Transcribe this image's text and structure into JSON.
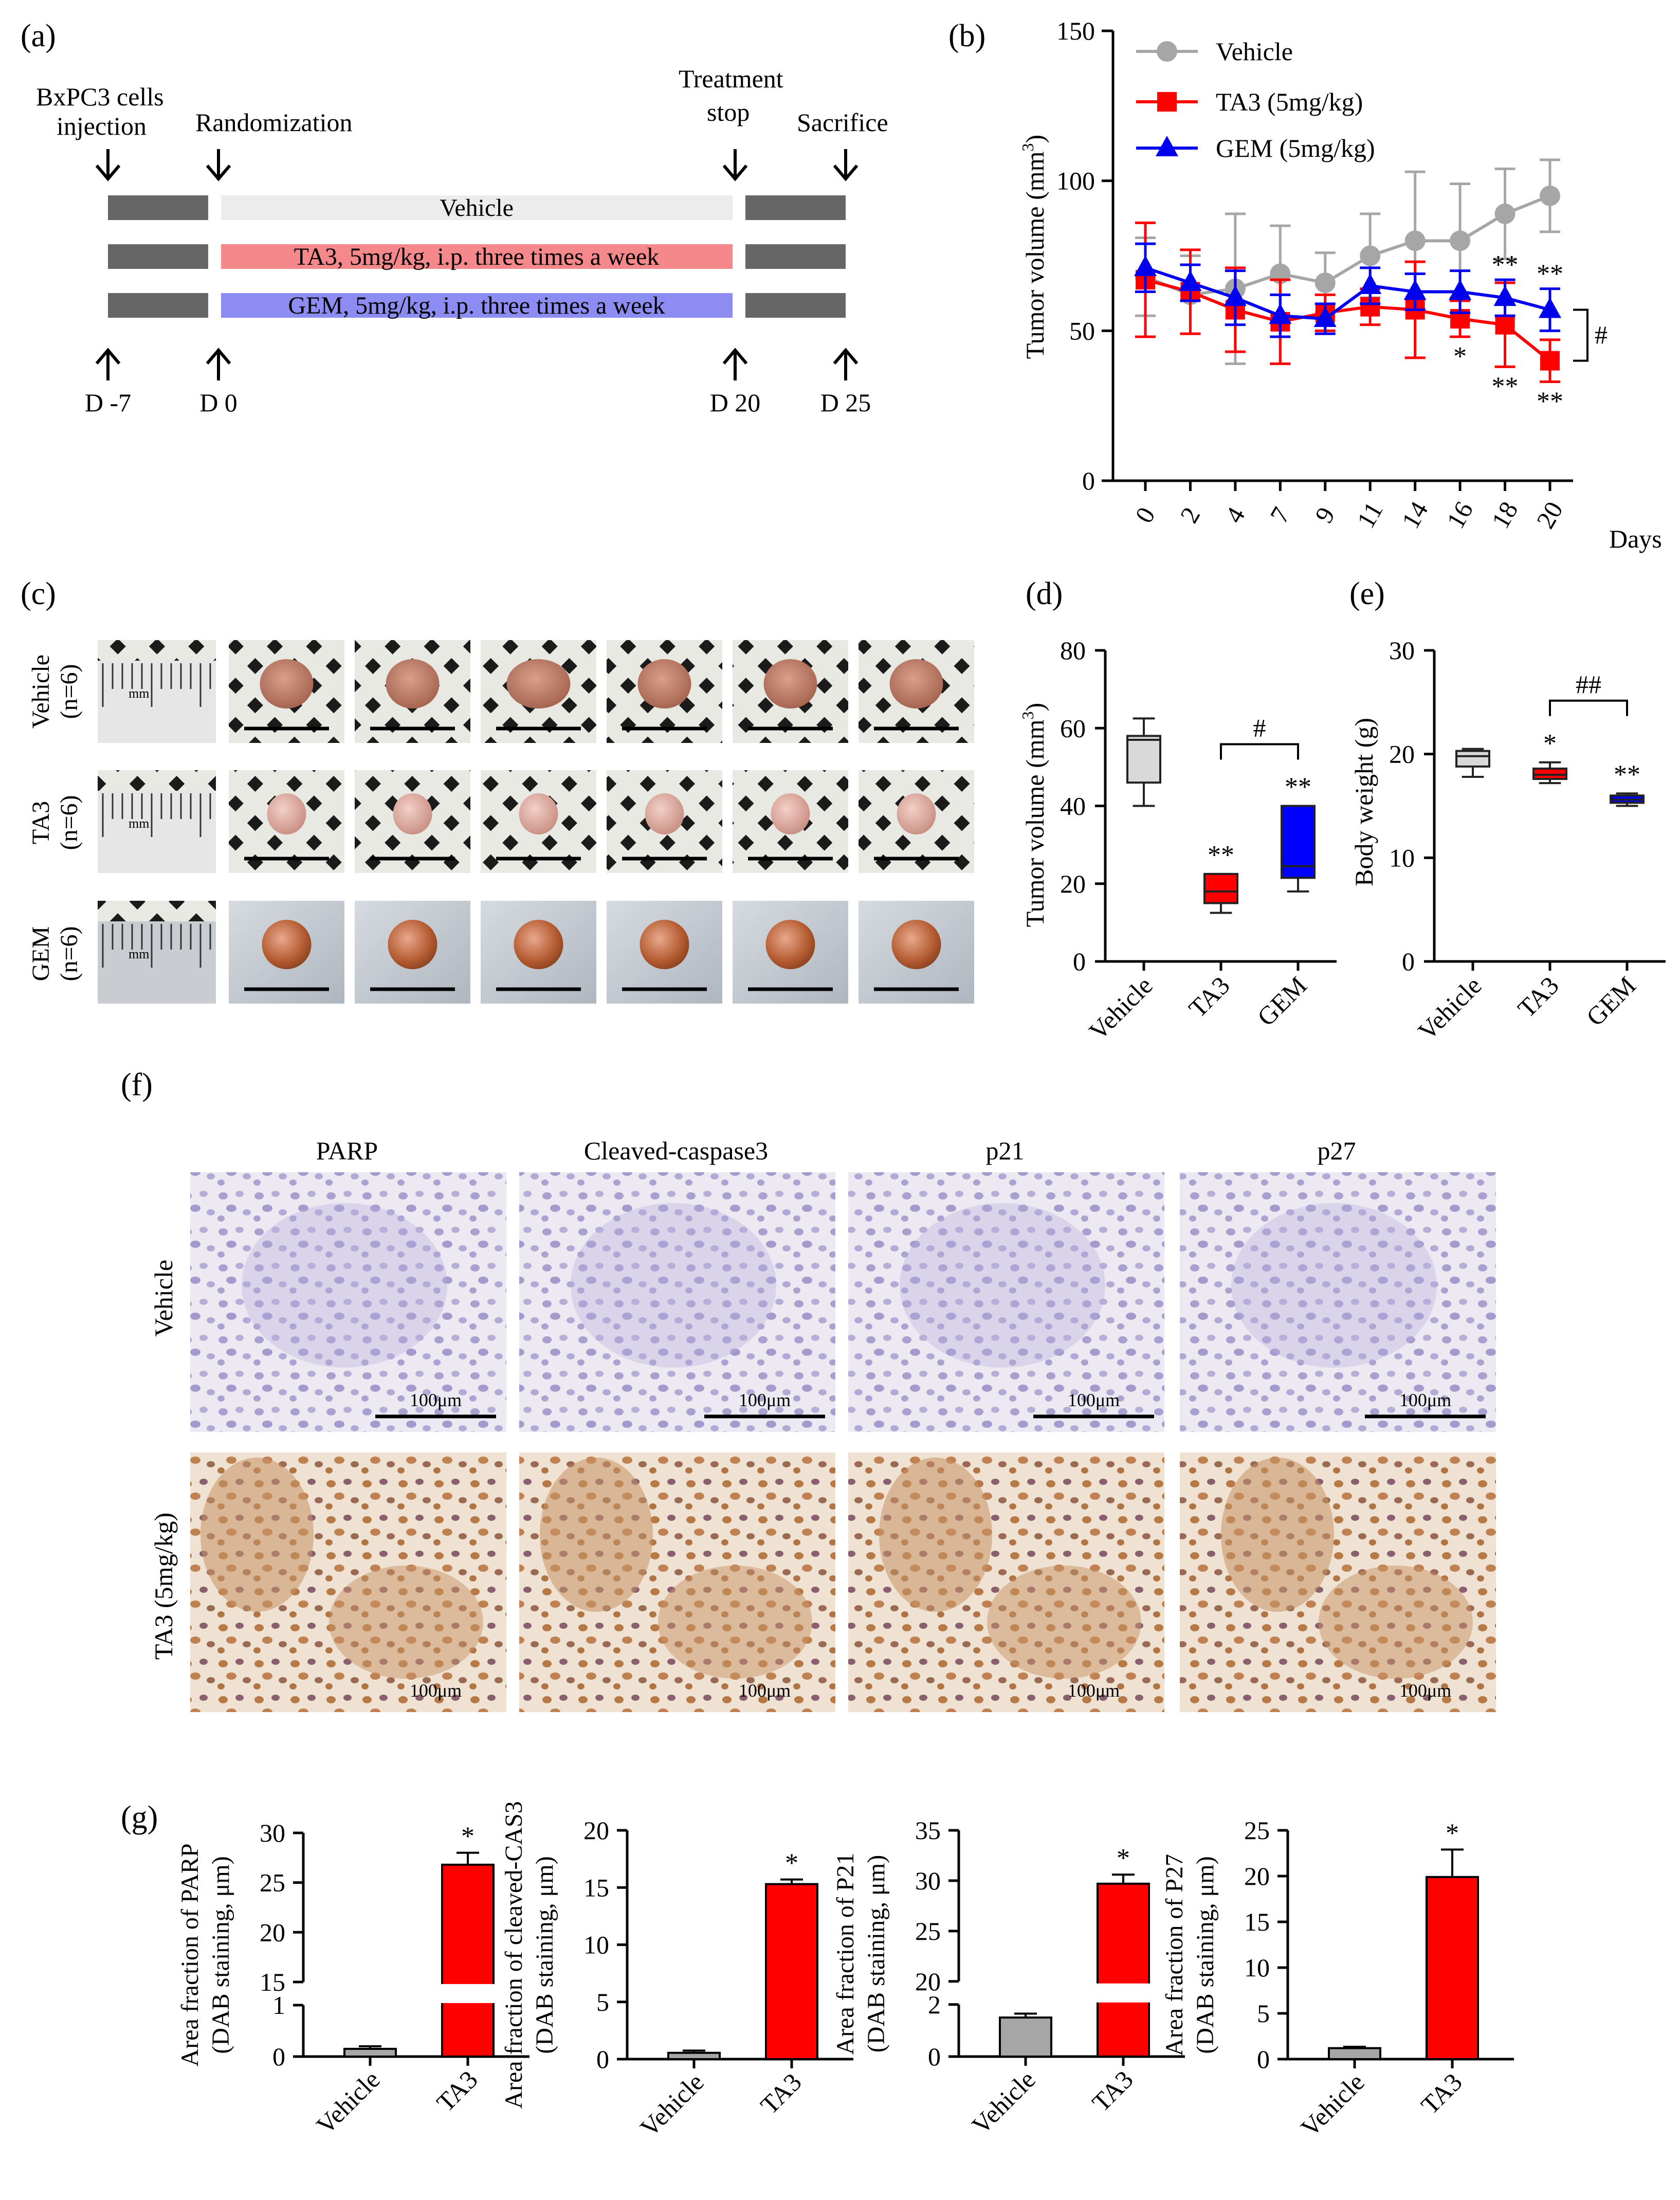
{
  "panels": {
    "a": "(a)",
    "b": "(b)",
    "c": "(c)",
    "d": "(d)",
    "e": "(e)",
    "f": "(f)",
    "g": "(g)"
  },
  "timeline": {
    "events_top": [
      "BxPC3 cells",
      "injection",
      "Randomization",
      "Treatment",
      "stop",
      "Sacrifice"
    ],
    "bars": [
      "Vehicle",
      "TA3, 5mg/kg, i.p. three times a week",
      "GEM, 5mg/kg, i.p. three times a week"
    ],
    "days": [
      "D -7",
      "D 0",
      "D 20",
      "D 25"
    ],
    "colors": {
      "vehicle": "#ececec",
      "ta3": "#f4888b",
      "gem": "#8c8cf2",
      "dark": "#666666"
    }
  },
  "photos": {
    "row_labels": [
      {
        "name": "Vehicle",
        "n": "(n=6)"
      },
      {
        "name": "TA3",
        "n": "(n=6)"
      },
      {
        "name": "GEM",
        "n": "(n=6)"
      }
    ],
    "ruler_unit": "mm"
  },
  "ihc": {
    "columns": [
      "PARP",
      "Cleaved-caspase3",
      "p21",
      "p27"
    ],
    "rows": [
      "Vehicle",
      "TA3 (5mg/kg)"
    ],
    "scale_label": "100μm"
  },
  "chart_data": [
    {
      "id": "b",
      "type": "line",
      "ylabel": "Tumor volume (mm",
      "ylabel_sup": "3",
      "ylabel_end": ")",
      "xlabel": "Days",
      "ylim": [
        0,
        150
      ],
      "yticks": [
        0,
        50,
        100,
        150
      ],
      "categories": [
        "0",
        "2",
        "4",
        "7",
        "9",
        "11",
        "14",
        "16",
        "18",
        "20"
      ],
      "series": [
        {
          "name": "Vehicle",
          "color": "#a6a6a6",
          "marker": "circle",
          "values": [
            68,
            62,
            64,
            69,
            66,
            75,
            80,
            80,
            89,
            95
          ],
          "errors": [
            13,
            13,
            25,
            16,
            10,
            14,
            23,
            19,
            15,
            12
          ]
        },
        {
          "name": "TA3 (5mg/kg)",
          "color": "#ff0000",
          "marker": "square",
          "values": [
            67,
            63,
            57,
            53,
            56,
            58,
            57,
            54,
            52,
            40
          ],
          "errors": [
            19,
            14,
            14,
            14,
            6,
            6,
            16,
            6,
            14,
            7
          ]
        },
        {
          "name": "GEM (5mg/kg)",
          "color": "#0000ee",
          "marker": "triangle",
          "values": [
            71,
            66,
            61,
            55,
            54,
            65,
            63,
            63,
            61,
            57
          ],
          "errors": [
            8,
            6,
            9,
            7,
            5,
            6,
            6,
            7,
            6,
            7
          ]
        }
      ],
      "annotations": {
        "above": [
          {
            "i": 8,
            "t": "**"
          },
          {
            "i": 9,
            "t": "**"
          }
        ],
        "below": [
          {
            "i": 7,
            "t": "*"
          },
          {
            "i": 8,
            "t": "**"
          },
          {
            "i": 9,
            "t": "**"
          }
        ],
        "bracket": "#"
      }
    },
    {
      "id": "d",
      "type": "box",
      "ylabel": "Tumor volume (mm",
      "ylabel_sup": "3",
      "ylabel_end": ")",
      "ylim": [
        0,
        80
      ],
      "yticks": [
        0,
        20,
        40,
        60,
        80
      ],
      "categories": [
        "Vehicle",
        "TA3",
        "GEM"
      ],
      "boxes": [
        {
          "min": 40,
          "q1": 46,
          "median": 57,
          "q3": 58,
          "max": 62.5,
          "color": "#d9d9d9",
          "mark": ""
        },
        {
          "min": 12.5,
          "q1": 15,
          "median": 18,
          "q3": 22.5,
          "max": 22.5,
          "color": "#ff0000",
          "mark": "**"
        },
        {
          "min": 18,
          "q1": 21.5,
          "median": 24.5,
          "q3": 40,
          "max": 40,
          "color": "#0000ff",
          "mark": "**"
        }
      ],
      "bracket": {
        "from": 1,
        "to": 2,
        "label": "#"
      }
    },
    {
      "id": "e",
      "type": "box",
      "ylabel": "Body weight (g)",
      "ylim": [
        0,
        30
      ],
      "yticks": [
        0,
        10,
        20,
        30
      ],
      "categories": [
        "Vehicle",
        "TA3",
        "GEM"
      ],
      "boxes": [
        {
          "min": 17.8,
          "q1": 18.8,
          "median": 19.8,
          "q3": 20.3,
          "max": 20.5,
          "color": "#d9d9d9",
          "mark": ""
        },
        {
          "min": 17.2,
          "q1": 17.6,
          "median": 18.0,
          "q3": 18.6,
          "max": 19.2,
          "color": "#ff0000",
          "mark": "*"
        },
        {
          "min": 15.0,
          "q1": 15.3,
          "median": 15.6,
          "q3": 16.0,
          "max": 16.2,
          "color": "#0000ff",
          "mark": "**"
        }
      ],
      "bracket": {
        "from": 1,
        "to": 2,
        "label": "##"
      }
    },
    {
      "id": "g1",
      "type": "bar",
      "ylabel1": "Area fraction of PARP",
      "ylabel2": "(DAB staining, μm)",
      "categories": [
        "Vehicle",
        "TA3"
      ],
      "values": [
        0.15,
        26.8
      ],
      "errors": [
        0.05,
        1.2
      ],
      "colors": [
        "#a6a6a6",
        "#ff0000"
      ],
      "broken_axis": {
        "lower": [
          0,
          1
        ],
        "upper": [
          15,
          30
        ]
      },
      "yticks_lower": [
        0,
        1
      ],
      "yticks_upper": [
        15,
        20,
        25,
        30
      ],
      "sig": "*"
    },
    {
      "id": "g2",
      "type": "bar",
      "ylabel1": "Area fraction of cleaved-CAS3",
      "ylabel2": "(DAB staining, μm)",
      "categories": [
        "Vehicle",
        "TA3"
      ],
      "values": [
        0.55,
        15.3
      ],
      "errors": [
        0.2,
        0.4
      ],
      "colors": [
        "#a6a6a6",
        "#ff0000"
      ],
      "ylim": [
        0,
        20
      ],
      "yticks": [
        0,
        5,
        10,
        15,
        20
      ],
      "sig": "*"
    },
    {
      "id": "g3",
      "type": "bar",
      "ylabel1": "Area fraction of P21",
      "ylabel2": "(DAB staining, μm)",
      "categories": [
        "Vehicle",
        "TA3"
      ],
      "values": [
        1.5,
        29.7
      ],
      "errors": [
        0.15,
        0.9
      ],
      "colors": [
        "#a6a6a6",
        "#ff0000"
      ],
      "broken_axis": {
        "lower": [
          0,
          2
        ],
        "upper": [
          20,
          35
        ]
      },
      "yticks_lower": [
        0,
        2
      ],
      "yticks_upper": [
        20,
        25,
        30,
        35
      ],
      "sig": "*"
    },
    {
      "id": "g4",
      "type": "bar",
      "ylabel1": "Area fraction of P27",
      "ylabel2": "(DAB staining, μm)",
      "categories": [
        "Vehicle",
        "TA3"
      ],
      "values": [
        1.2,
        19.9
      ],
      "errors": [
        0.15,
        3.0
      ],
      "colors": [
        "#a6a6a6",
        "#ff0000"
      ],
      "ylim": [
        0,
        25
      ],
      "yticks": [
        0,
        5,
        10,
        15,
        20,
        25
      ],
      "sig": "*"
    }
  ]
}
